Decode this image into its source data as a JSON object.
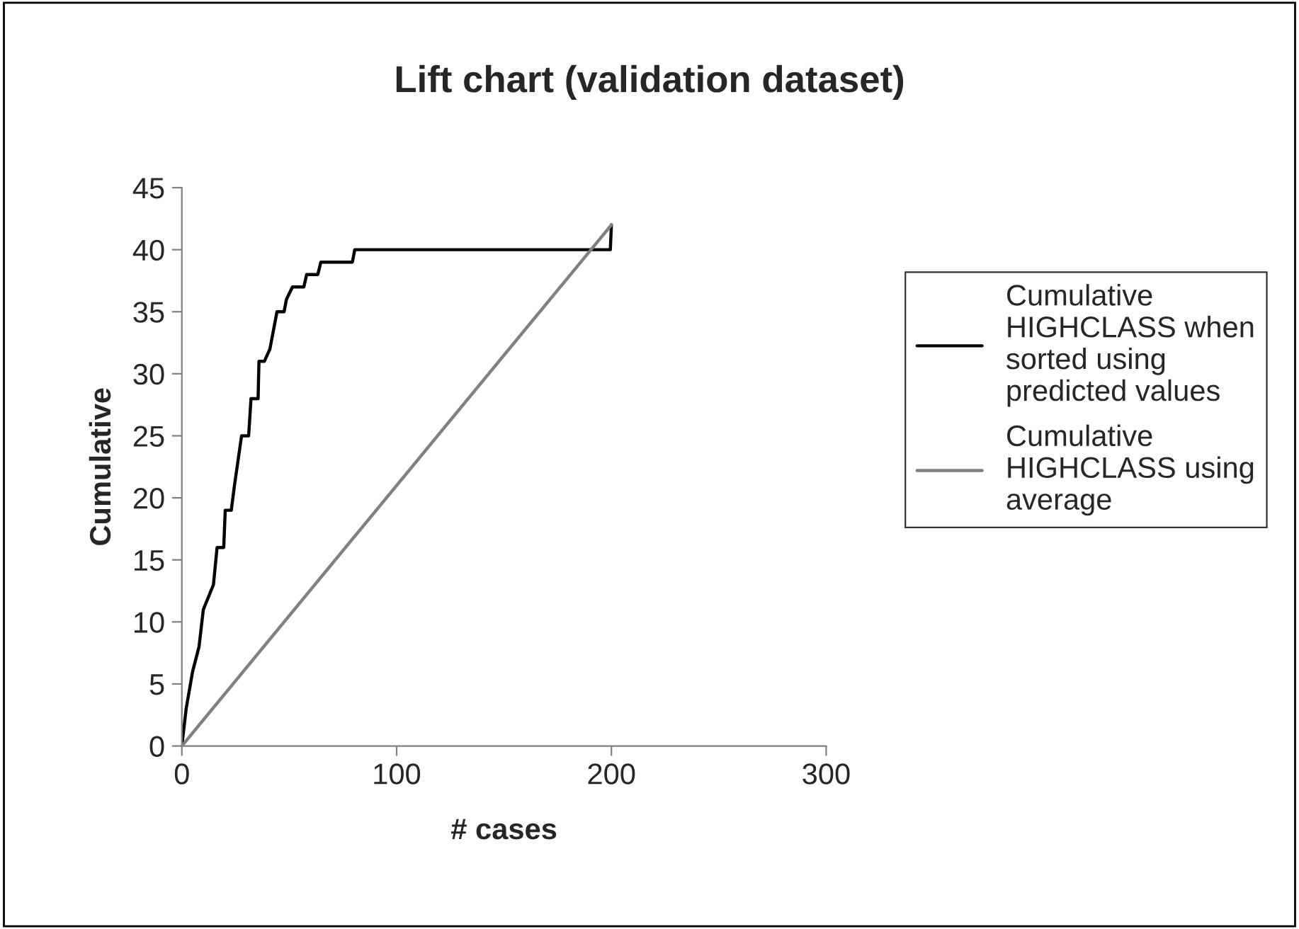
{
  "chart_data": {
    "type": "line",
    "title": "Lift chart (validation dataset)",
    "xlabel": "# cases",
    "ylabel": "Cumulative",
    "xlim": [
      0,
      300
    ],
    "xticks": [
      0,
      100,
      200,
      300
    ],
    "ylim": [
      0,
      45
    ],
    "yticks": [
      0,
      5,
      10,
      15,
      20,
      25,
      30,
      35,
      40,
      45
    ],
    "legend": "right",
    "grid": false,
    "marker": "none",
    "line_style": "solid",
    "series": [
      {
        "name": "Cumulative HIGHCLASS when sorted using predicted values",
        "color": "#000000",
        "x": [
          0,
          2,
          5,
          8,
          10,
          14.7,
          16.4,
          19.5,
          20.2,
          23,
          24.5,
          27.8,
          31.1,
          32.2,
          35.5,
          35.9,
          38.4,
          41,
          43.2,
          44.3,
          47.6,
          48.7,
          51.5,
          56.8,
          58.1,
          63.3,
          64.7,
          79.4,
          80.5,
          199.5,
          200
        ],
        "values": [
          0,
          3,
          6,
          8,
          11,
          13,
          16,
          16,
          19,
          19,
          21,
          25,
          25,
          28,
          28,
          31,
          31,
          32,
          34,
          35,
          35,
          36,
          37,
          37,
          38,
          38,
          39,
          39,
          40,
          40,
          42
        ]
      },
      {
        "name": "Cumulative HIGHCLASS using average",
        "color": "#808080",
        "x": [
          0,
          200
        ],
        "values": [
          0,
          42
        ]
      }
    ]
  }
}
